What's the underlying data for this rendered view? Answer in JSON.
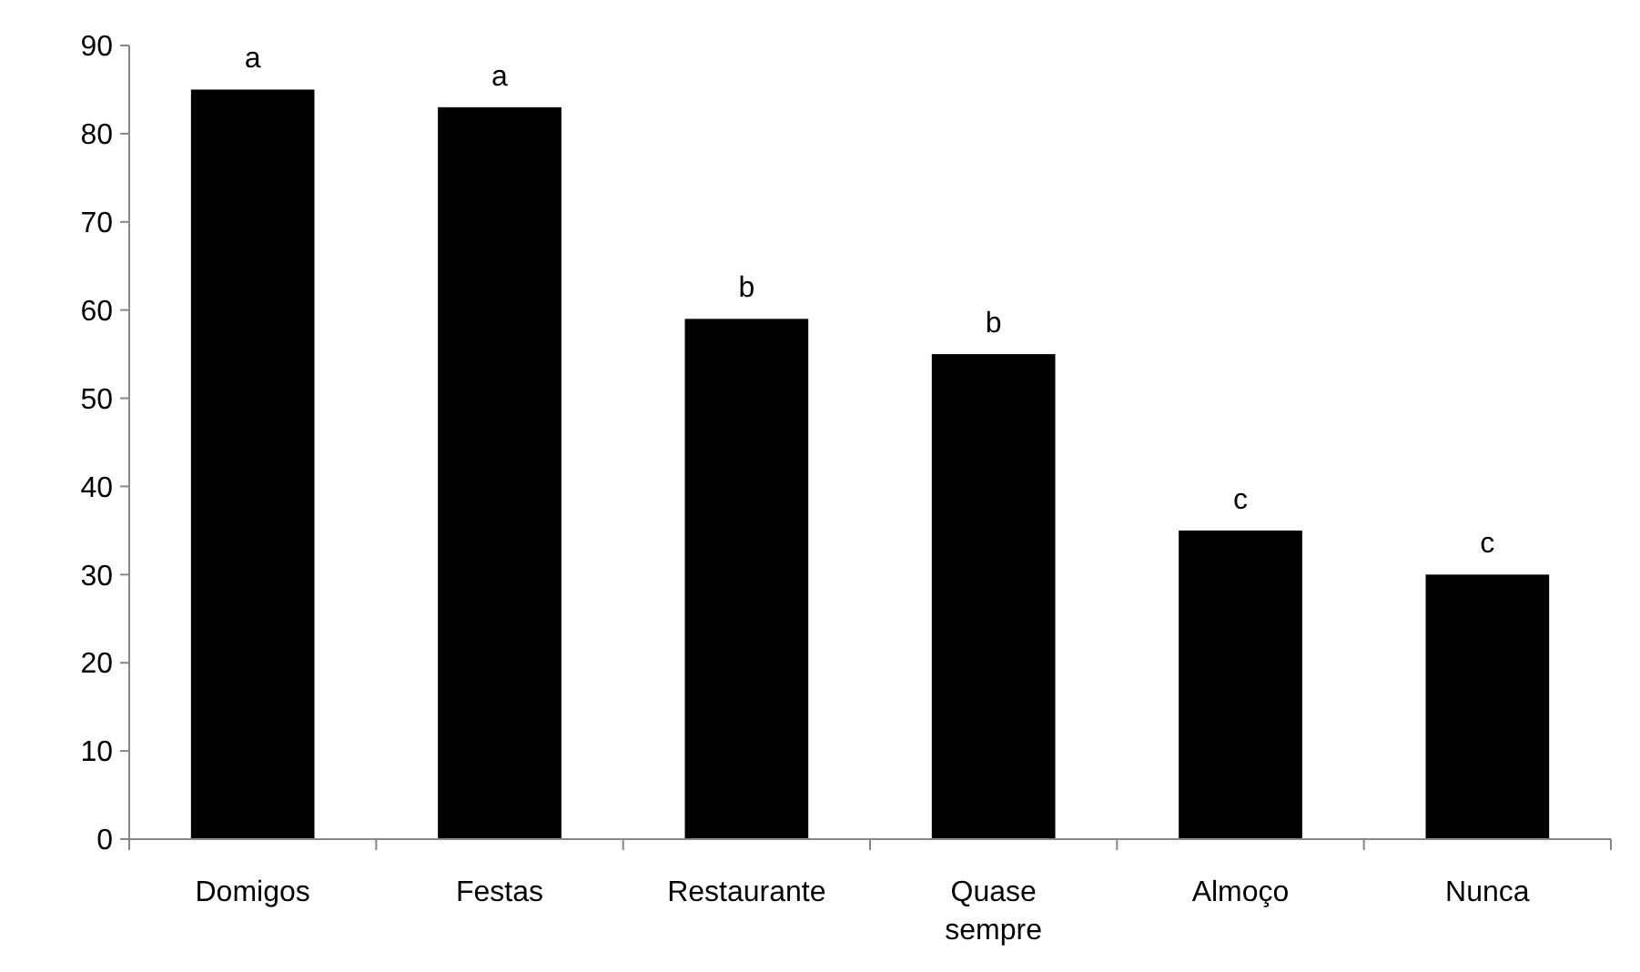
{
  "chart_data": {
    "type": "bar",
    "categories": [
      "Domigos",
      "Festas",
      "Restaurante",
      "Quase sempre",
      "Almoço",
      "Nunca"
    ],
    "values": [
      85,
      83,
      59,
      55,
      35,
      30
    ],
    "color": "#000000",
    "ylim": [
      0,
      90
    ],
    "yticks": [
      0,
      10,
      20,
      30,
      40,
      50,
      60,
      70,
      80,
      90
    ],
    "grid": false,
    "annotations": [
      {
        "text": "a",
        "x": "Domigos",
        "y": 85
      },
      {
        "text": "a",
        "x": "Festas",
        "y": 83
      },
      {
        "text": "b",
        "x": "Restaurante",
        "y": 59
      },
      {
        "text": "b",
        "x": "Quase sempre",
        "y": 55
      },
      {
        "text": "c",
        "x": "Almoço",
        "y": 35
      },
      {
        "text": "c",
        "x": "Nunca",
        "y": 30
      }
    ]
  }
}
